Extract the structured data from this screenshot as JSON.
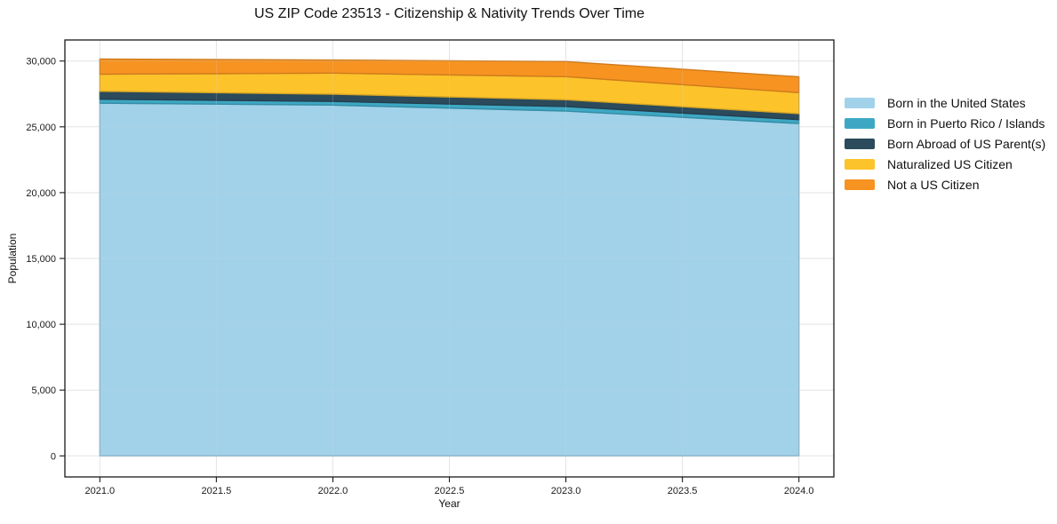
{
  "chart_data": {
    "type": "area",
    "stacked": true,
    "title": "US ZIP Code 23513 - Citizenship & Nativity Trends Over Time",
    "xlabel": "Year",
    "ylabel": "Population",
    "x": [
      2021,
      2022,
      2023,
      2024
    ],
    "series": [
      {
        "name": "Born in the United States",
        "color": "#A1D2EA",
        "values": [
          26800,
          26650,
          26200,
          25250
        ]
      },
      {
        "name": "Born in Puerto Rico / Islands",
        "color": "#3EA8C4",
        "values": [
          300,
          280,
          340,
          300
        ]
      },
      {
        "name": "Born Abroad of US Parent(s)",
        "color": "#2B4A5C",
        "values": [
          600,
          550,
          520,
          450
        ]
      },
      {
        "name": "Naturalized US Citizen",
        "color": "#FCC32B",
        "values": [
          1300,
          1600,
          1750,
          1600
        ]
      },
      {
        "name": "Not a US Citizen",
        "color": "#F79321",
        "values": [
          1150,
          1000,
          1150,
          1200
        ]
      }
    ],
    "totals": [
      30150,
      30080,
      29960,
      28800
    ],
    "x_ticks": [
      2021.0,
      2021.5,
      2022.0,
      2022.5,
      2023.0,
      2023.5,
      2024.0
    ],
    "x_tick_labels": [
      "2021.0",
      "2021.5",
      "2022.0",
      "2022.5",
      "2023.0",
      "2023.5",
      "2024.0"
    ],
    "y_ticks": [
      0,
      5000,
      10000,
      15000,
      20000,
      25000,
      30000
    ],
    "y_tick_labels": [
      "0",
      "5,000",
      "10,000",
      "15,000",
      "20,000",
      "25,000",
      "30,000"
    ],
    "xlim": [
      2020.85,
      2024.15
    ],
    "ylim": [
      -1600,
      31600
    ],
    "grid": true,
    "legend_position": "outside-right",
    "colors": {
      "background": "#ffffff",
      "axis": "#1a1a1a",
      "grid": "#e9e9e9",
      "text": "#111111"
    }
  }
}
